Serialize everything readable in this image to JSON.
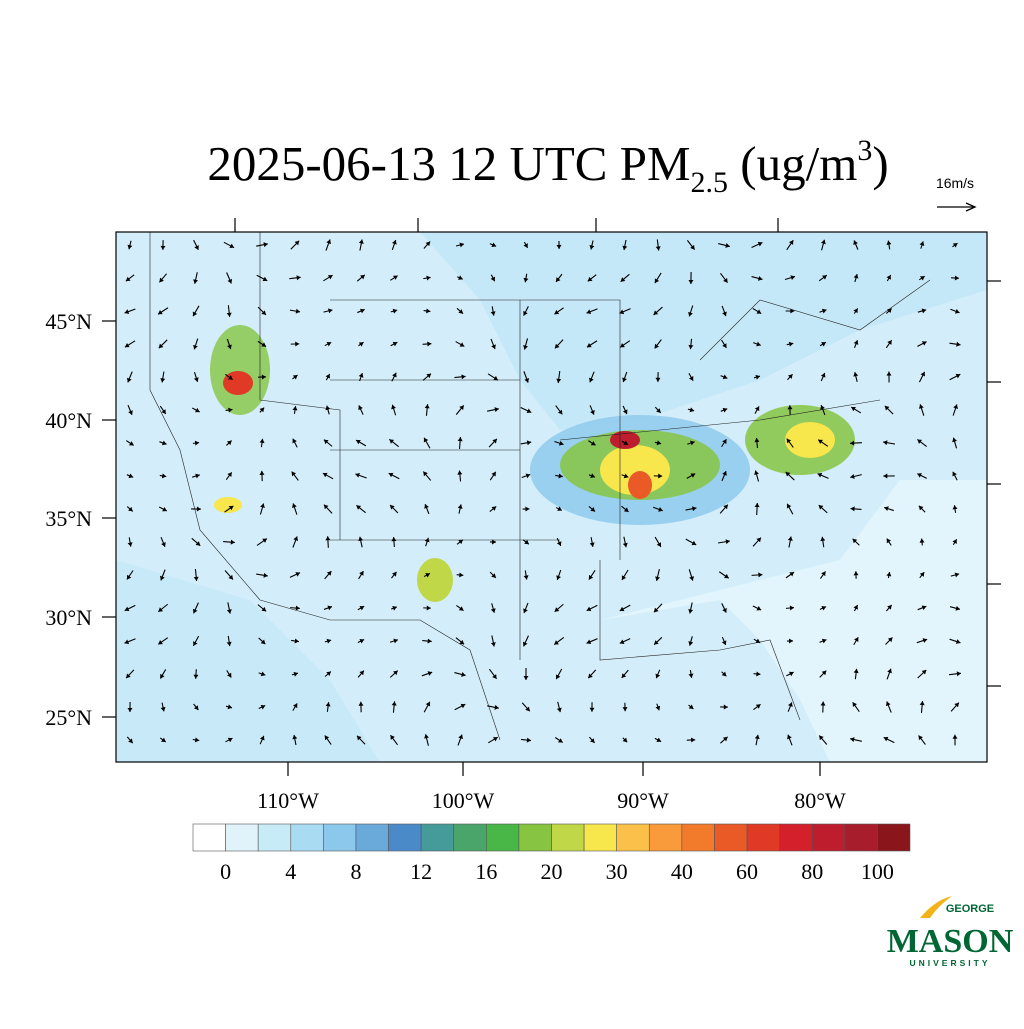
{
  "title": {
    "main": "2025-06-13 12 UTC PM",
    "subscript": "2.5",
    "unit_open": " (ug/m",
    "superscript": "3",
    "unit_close": ")"
  },
  "vector_scale": "16m/s",
  "lat_labels": [
    "45°N",
    "40°N",
    "35°N",
    "30°N",
    "25°N"
  ],
  "lon_labels": [
    "110°W",
    "100°W",
    "90°W",
    "80°W"
  ],
  "colorbar": {
    "colors": [
      "#ffffff",
      "#e0f3fb",
      "#c8ebf8",
      "#a9dcf2",
      "#8cc8ec",
      "#6aaadb",
      "#4a8ac8",
      "#459b9a",
      "#4aa56a",
      "#49b648",
      "#86c441",
      "#c0d748",
      "#f7e64c",
      "#fbc04a",
      "#f99b3a",
      "#f27a2b",
      "#ea5a27",
      "#e03a27",
      "#d3202b",
      "#be1d2d",
      "#a71d2b",
      "#8a161c"
    ],
    "labels": [
      "0",
      "4",
      "8",
      "12",
      "16",
      "20",
      "30",
      "40",
      "60",
      "80",
      "100"
    ]
  },
  "logo": {
    "top": "GEORGE",
    "main": "MASON",
    "bottom": "UNIVERSITY"
  }
}
